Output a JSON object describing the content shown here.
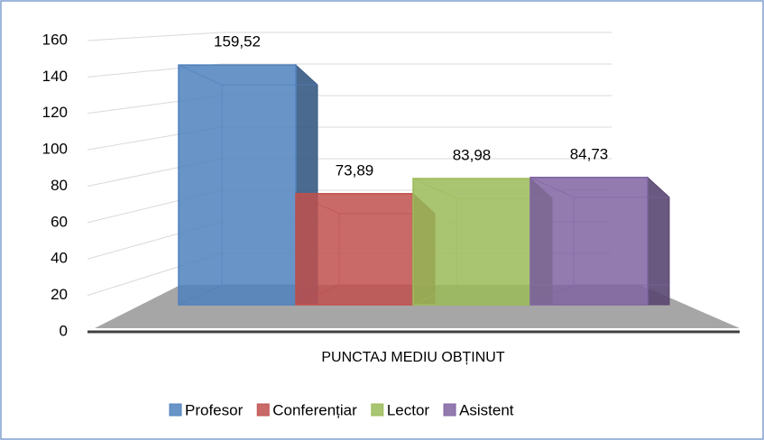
{
  "chart_data": {
    "type": "bar3d",
    "categories": [
      "PUNCTAJ MEDIU OBȚINUT"
    ],
    "series": [
      {
        "name": "Profesor",
        "color": "#4f81bd",
        "values": [
          159.52
        ],
        "value_labels": [
          "159,52"
        ]
      },
      {
        "name": "Conferențiar",
        "color": "#c0504d",
        "values": [
          73.89
        ],
        "value_labels": [
          "73,89"
        ]
      },
      {
        "name": "Lector",
        "color": "#9bbb59",
        "values": [
          83.98
        ],
        "value_labels": [
          "83,98"
        ]
      },
      {
        "name": "Asistent",
        "color": "#8064a2",
        "values": [
          84.73
        ],
        "value_labels": [
          "84,73"
        ]
      }
    ],
    "ylim": [
      0,
      160
    ],
    "yticks": [
      0,
      20,
      40,
      60,
      80,
      100,
      120,
      140,
      160
    ],
    "grid": true,
    "legend": "bottom"
  }
}
